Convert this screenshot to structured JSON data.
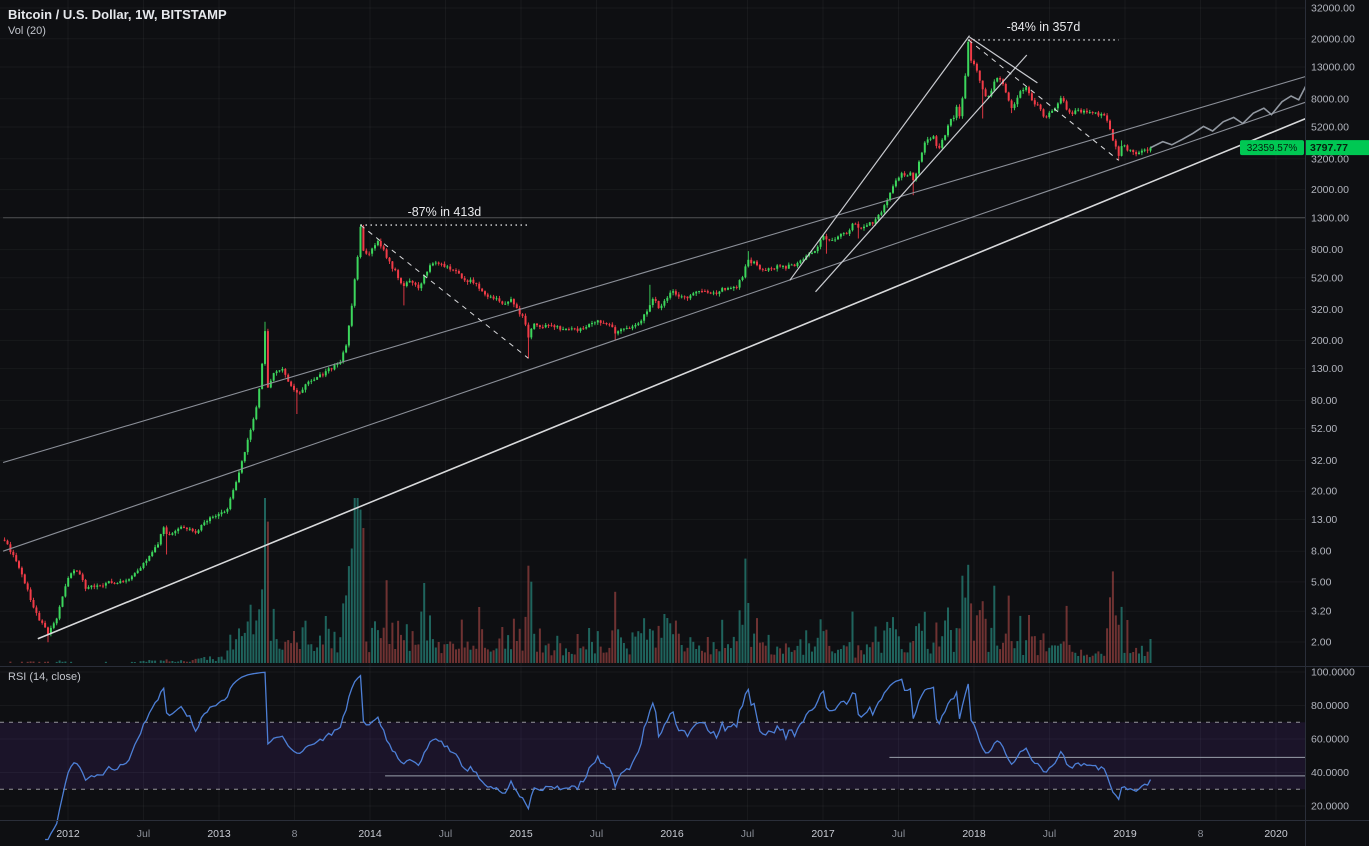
{
  "legend": {
    "title": "Bitcoin / U.S. Dollar, 1W, BITSTAMP",
    "volume_label": "Vol (20)",
    "rsi_label": "RSI (14, close)"
  },
  "price_badge": {
    "percent": "32359.57%",
    "price": "3797.77"
  },
  "colors": {
    "background": "#0e0f12",
    "up": "#3cd65c",
    "down": "#f13b47",
    "vol_up": "rgba(42,154,140,0.62)",
    "vol_down": "rgba(192,80,77,0.55)",
    "trend_white": "#d8d9db",
    "trend_gray": "#8b8f98",
    "projection": "#9aa0aa",
    "annotation": "#e8e9ec",
    "rsi_line": "#4d7fd6",
    "rsi_band": "rgba(103,58,183,0.14)",
    "rsi_dashed": "rgba(255,255,255,0.55)",
    "axis_text": "#b2b5be",
    "major_time_text": "#c9ccd4",
    "minor_time_text": "#8b8f98",
    "divider": "#2a2e39",
    "grid": "rgba(255,255,255,0.045)",
    "badge": "#00c853",
    "badge_text": "#06210e"
  },
  "chart_data": {
    "type": "candlestick",
    "title": "Bitcoin / U.S. Dollar, 1W, BITSTAMP",
    "exchange_note": "shown only in title string",
    "x_axis": {
      "start": 2011.58,
      "end": 2020.23,
      "last_candle": 2019.17,
      "labels": [
        {
          "t": 2012,
          "label": "2012",
          "major": true
        },
        {
          "t": 2012.5,
          "label": "Jul",
          "major": false
        },
        {
          "t": 2013,
          "label": "2013",
          "major": true
        },
        {
          "t": 2013.5,
          "label": "8",
          "major": false
        },
        {
          "t": 2014,
          "label": "2014",
          "major": true
        },
        {
          "t": 2014.5,
          "label": "Jul",
          "major": false
        },
        {
          "t": 2015,
          "label": "2015",
          "major": true
        },
        {
          "t": 2015.5,
          "label": "Jul",
          "major": false
        },
        {
          "t": 2016,
          "label": "2016",
          "major": true
        },
        {
          "t": 2016.5,
          "label": "Jul",
          "major": false
        },
        {
          "t": 2017,
          "label": "2017",
          "major": true
        },
        {
          "t": 2017.5,
          "label": "Jul",
          "major": false
        },
        {
          "t": 2018,
          "label": "2018",
          "major": true
        },
        {
          "t": 2018.5,
          "label": "Jul",
          "major": false
        },
        {
          "t": 2019,
          "label": "2019",
          "major": true
        },
        {
          "t": 2019.5,
          "label": "8",
          "major": false
        },
        {
          "t": 2020,
          "label": "2020",
          "major": true
        }
      ]
    },
    "y_axis": {
      "scale": "log",
      "min": 2,
      "max": 32000,
      "tick_values": [
        32000,
        20000,
        13000,
        8000,
        5200,
        3200,
        2000,
        1300,
        800,
        520,
        320,
        200,
        130,
        80,
        52,
        32,
        20,
        13,
        8,
        5,
        3.2,
        2
      ]
    },
    "last_close": 3797.77,
    "price_anchors": [
      [
        2011.58,
        9.5
      ],
      [
        2011.62,
        8
      ],
      [
        2011.7,
        5.5
      ],
      [
        2011.78,
        3.2
      ],
      [
        2011.868,
        2.25
      ],
      [
        2011.93,
        3
      ],
      [
        2012,
        5.4
      ],
      [
        2012.05,
        6.3
      ],
      [
        2012.12,
        4.5
      ],
      [
        2012.25,
        4.9
      ],
      [
        2012.4,
        5.1
      ],
      [
        2012.5,
        6.6
      ],
      [
        2012.6,
        9.2
      ],
      [
        2012.63,
        12
      ],
      [
        2012.66,
        10.2
      ],
      [
        2012.75,
        11.8
      ],
      [
        2012.85,
        10.8
      ],
      [
        2012.95,
        13.4
      ],
      [
        2013.05,
        14.8
      ],
      [
        2013.1,
        21
      ],
      [
        2013.15,
        31
      ],
      [
        2013.2,
        47
      ],
      [
        2013.25,
        72
      ],
      [
        2013.286,
        140
      ],
      [
        2013.305,
        233
      ],
      [
        2013.324,
        95
      ],
      [
        2013.36,
        118
      ],
      [
        2013.42,
        128
      ],
      [
        2013.47,
        104
      ],
      [
        2013.52,
        89
      ],
      [
        2013.58,
        102
      ],
      [
        2013.65,
        112
      ],
      [
        2013.72,
        127
      ],
      [
        2013.8,
        143
      ],
      [
        2013.84,
        186
      ],
      [
        2013.88,
        345
      ],
      [
        2013.918,
        716
      ],
      [
        2013.937,
        1130
      ],
      [
        2013.957,
        770
      ],
      [
        2013.99,
        735
      ],
      [
        2014.02,
        832
      ],
      [
        2014.05,
        926
      ],
      [
        2014.09,
        810
      ],
      [
        2014.13,
        645
      ],
      [
        2014.17,
        565
      ],
      [
        2014.22,
        455
      ],
      [
        2014.27,
        500
      ],
      [
        2014.33,
        448
      ],
      [
        2014.38,
        590
      ],
      [
        2014.43,
        655
      ],
      [
        2014.5,
        620
      ],
      [
        2014.55,
        596
      ],
      [
        2014.62,
        505
      ],
      [
        2014.7,
        482
      ],
      [
        2014.75,
        402
      ],
      [
        2014.82,
        387
      ],
      [
        2014.88,
        352
      ],
      [
        2014.93,
        378
      ],
      [
        2014.98,
        317
      ],
      [
        2015.02,
        273
      ],
      [
        2015.049,
        204
      ],
      [
        2015.08,
        266
      ],
      [
        2015.13,
        239
      ],
      [
        2015.18,
        254
      ],
      [
        2015.23,
        243
      ],
      [
        2015.3,
        237
      ],
      [
        2015.38,
        233
      ],
      [
        2015.45,
        249
      ],
      [
        2015.52,
        269
      ],
      [
        2015.58,
        257
      ],
      [
        2015.63,
        223
      ],
      [
        2015.68,
        235
      ],
      [
        2015.75,
        242
      ],
      [
        2015.8,
        272
      ],
      [
        2015.85,
        334
      ],
      [
        2015.88,
        378
      ],
      [
        2015.91,
        323
      ],
      [
        2015.95,
        362
      ],
      [
        2016,
        433
      ],
      [
        2016.05,
        386
      ],
      [
        2016.1,
        377
      ],
      [
        2016.15,
        413
      ],
      [
        2016.22,
        419
      ],
      [
        2016.3,
        417
      ],
      [
        2016.38,
        456
      ],
      [
        2016.43,
        453
      ],
      [
        2016.47,
        543
      ],
      [
        2016.5,
        672
      ],
      [
        2016.54,
        662
      ],
      [
        2016.58,
        594
      ],
      [
        2016.62,
        576
      ],
      [
        2016.68,
        611
      ],
      [
        2016.75,
        613
      ],
      [
        2016.82,
        639
      ],
      [
        2016.88,
        709
      ],
      [
        2016.94,
        772
      ],
      [
        2017,
        966
      ],
      [
        2017.03,
        897
      ],
      [
        2017.08,
        921
      ],
      [
        2017.13,
        1012
      ],
      [
        2017.17,
        1057
      ],
      [
        2017.2,
        1181
      ],
      [
        2017.24,
        1102
      ],
      [
        2017.28,
        1183
      ],
      [
        2017.33,
        1192
      ],
      [
        2017.37,
        1353
      ],
      [
        2017.41,
        1592
      ],
      [
        2017.45,
        1932
      ],
      [
        2017.48,
        2252
      ],
      [
        2017.52,
        2553
      ],
      [
        2017.55,
        2483
      ],
      [
        2017.58,
        2603
      ],
      [
        2017.6,
        2253
      ],
      [
        2017.63,
        2872
      ],
      [
        2017.67,
        4093
      ],
      [
        2017.7,
        4353
      ],
      [
        2017.73,
        4603
      ],
      [
        2017.76,
        3703
      ],
      [
        2017.8,
        4403
      ],
      [
        2017.84,
        5703
      ],
      [
        2017.87,
        6153
      ],
      [
        2017.89,
        7403
      ],
      [
        2017.905,
        5903
      ],
      [
        2017.924,
        8203
      ],
      [
        2017.943,
        11303
      ],
      [
        2017.962,
        19100
      ],
      [
        2017.981,
        14100
      ],
      [
        2018,
        13850
      ],
      [
        2018.03,
        11200
      ],
      [
        2018.06,
        8900
      ],
      [
        2018.09,
        8200
      ],
      [
        2018.11,
        8900
      ],
      [
        2018.13,
        10200
      ],
      [
        2018.16,
        11000
      ],
      [
        2018.19,
        9900
      ],
      [
        2018.22,
        8500
      ],
      [
        2018.25,
        6900
      ],
      [
        2018.28,
        8000
      ],
      [
        2018.31,
        8900
      ],
      [
        2018.34,
        9650
      ],
      [
        2018.37,
        8500
      ],
      [
        2018.4,
        7500
      ],
      [
        2018.43,
        7360
      ],
      [
        2018.46,
        6150
      ],
      [
        2018.49,
        6250
      ],
      [
        2018.52,
        6750
      ],
      [
        2018.55,
        7400
      ],
      [
        2018.58,
        8200
      ],
      [
        2018.61,
        7050
      ],
      [
        2018.64,
        6300
      ],
      [
        2018.67,
        6500
      ],
      [
        2018.7,
        6700
      ],
      [
        2018.73,
        6500
      ],
      [
        2018.76,
        6600
      ],
      [
        2018.79,
        6450
      ],
      [
        2018.82,
        6350
      ],
      [
        2018.85,
        6400
      ],
      [
        2018.87,
        6350
      ],
      [
        2018.89,
        5550
      ],
      [
        2018.92,
        4300
      ],
      [
        2018.939,
        3850
      ],
      [
        2018.958,
        3250
      ],
      [
        2018.977,
        3900
      ],
      [
        2019,
        3830
      ],
      [
        2019.02,
        3650
      ],
      [
        2019.05,
        3590
      ],
      [
        2019.08,
        3470
      ],
      [
        2019.11,
        3600
      ],
      [
        2019.14,
        3670
      ],
      [
        2019.17,
        3797.77
      ]
    ],
    "wick_events": [
      {
        "t": 2011.868,
        "low": 1.99
      },
      {
        "t": 2012.66,
        "low": 7.6
      },
      {
        "t": 2013.305,
        "high": 266
      },
      {
        "t": 2013.52,
        "low": 65
      },
      {
        "t": 2013.937,
        "high": 1163
      },
      {
        "t": 2014.22,
        "low": 341
      },
      {
        "t": 2015.049,
        "low": 152
      },
      {
        "t": 2015.63,
        "low": 199
      },
      {
        "t": 2015.85,
        "high": 467
      },
      {
        "t": 2016.5,
        "high": 781
      },
      {
        "t": 2017.03,
        "low": 751
      },
      {
        "t": 2017.24,
        "low": 947
      },
      {
        "t": 2017.6,
        "low": 1836
      },
      {
        "t": 2017.962,
        "high": 19666
      },
      {
        "t": 2018.06,
        "low": 5920
      },
      {
        "t": 2018.25,
        "low": 6430
      },
      {
        "t": 2018.958,
        "low": 3122
      },
      {
        "t": 2018.977,
        "high": 4237
      }
    ],
    "trendlines": [
      {
        "name": "channel-lower-white",
        "t1": 2011.8,
        "p1": 2.1,
        "t2": 2020.23,
        "p2": 6100,
        "color": "#d8d9db",
        "width": 1.6
      },
      {
        "name": "channel-mid-gray",
        "t1": 2011.57,
        "p1": 8,
        "t2": 2020.23,
        "p2": 7800,
        "color": "#8b8f98",
        "width": 1.1
      },
      {
        "name": "channel-upper-gray",
        "t1": 2011.57,
        "p1": 31,
        "t2": 2020.23,
        "p2": 11500,
        "color": "#8b8f98",
        "width": 1.1
      },
      {
        "name": "parabolic-support-1",
        "t1": 2016.78,
        "p1": 500,
        "t2": 2017.97,
        "p2": 21000,
        "color": "#c9cbd0",
        "width": 1.2
      },
      {
        "name": "parabolic-support-2",
        "t1": 2016.95,
        "p1": 420,
        "t2": 2018.35,
        "p2": 15600,
        "color": "#c9cbd0",
        "width": 1.2
      },
      {
        "name": "peak-downtrend",
        "t1": 2017.97,
        "p1": 20500,
        "t2": 2018.42,
        "p2": 10200,
        "color": "#c9cbd0",
        "width": 1.2
      }
    ],
    "level_lines": [
      {
        "p": 1300,
        "t1": 2011.57,
        "t2": 2020.23,
        "color": "rgba(255,255,255,0.25)"
      }
    ],
    "drops": [
      {
        "label": "-87% in 413d",
        "peak_t": 2013.937,
        "peak_p": 1163,
        "trough_t": 2015.049,
        "trough_p": 152
      },
      {
        "label": "-84% in 357d",
        "peak_t": 2017.962,
        "peak_p": 19666,
        "trough_t": 2018.958,
        "trough_p": 3122
      }
    ],
    "projection_line": [
      [
        2019.17,
        3797
      ],
      [
        2019.25,
        4160
      ],
      [
        2019.31,
        3960
      ],
      [
        2019.38,
        4310
      ],
      [
        2019.45,
        4720
      ],
      [
        2019.52,
        5250
      ],
      [
        2019.58,
        4890
      ],
      [
        2019.65,
        5630
      ],
      [
        2019.72,
        6020
      ],
      [
        2019.78,
        5480
      ],
      [
        2019.85,
        6420
      ],
      [
        2019.92,
        6930
      ],
      [
        2019.97,
        6280
      ],
      [
        2020.04,
        7650
      ],
      [
        2020.1,
        8350
      ],
      [
        2020.15,
        7880
      ],
      [
        2020.21,
        10300
      ]
    ],
    "volume": {
      "label": "Vol (20)",
      "base_anchors": [
        [
          2011.58,
          1
        ],
        [
          2012.2,
          1.5
        ],
        [
          2012.7,
          4
        ],
        [
          2013,
          10
        ],
        [
          2013.2,
          35
        ],
        [
          2013.5,
          45
        ],
        [
          2013.9,
          70
        ],
        [
          2014.1,
          60
        ],
        [
          2014.5,
          50
        ],
        [
          2014.9,
          52
        ],
        [
          2015.1,
          55
        ],
        [
          2015.5,
          50
        ],
        [
          2015.8,
          68
        ],
        [
          2016,
          58
        ],
        [
          2016.3,
          48
        ],
        [
          2016.5,
          55
        ],
        [
          2016.8,
          45
        ],
        [
          2017,
          42
        ],
        [
          2017.5,
          38
        ],
        [
          2017.9,
          42
        ],
        [
          2018,
          45
        ],
        [
          2018.3,
          42
        ],
        [
          2018.6,
          35
        ],
        [
          2018.85,
          32
        ],
        [
          2018.95,
          48
        ],
        [
          2019.17,
          30
        ]
      ]
    },
    "rsi": {
      "label": "RSI (14, close)",
      "period": 14,
      "overbought": 70,
      "oversold": 30,
      "tick_values": [
        100,
        80,
        60,
        40,
        20
      ],
      "level_lines": [
        {
          "value": 38,
          "t1": 2014.1,
          "t2": 2020.23
        },
        {
          "value": 49,
          "t1": 2017.44,
          "t2": 2020.23
        }
      ]
    }
  }
}
